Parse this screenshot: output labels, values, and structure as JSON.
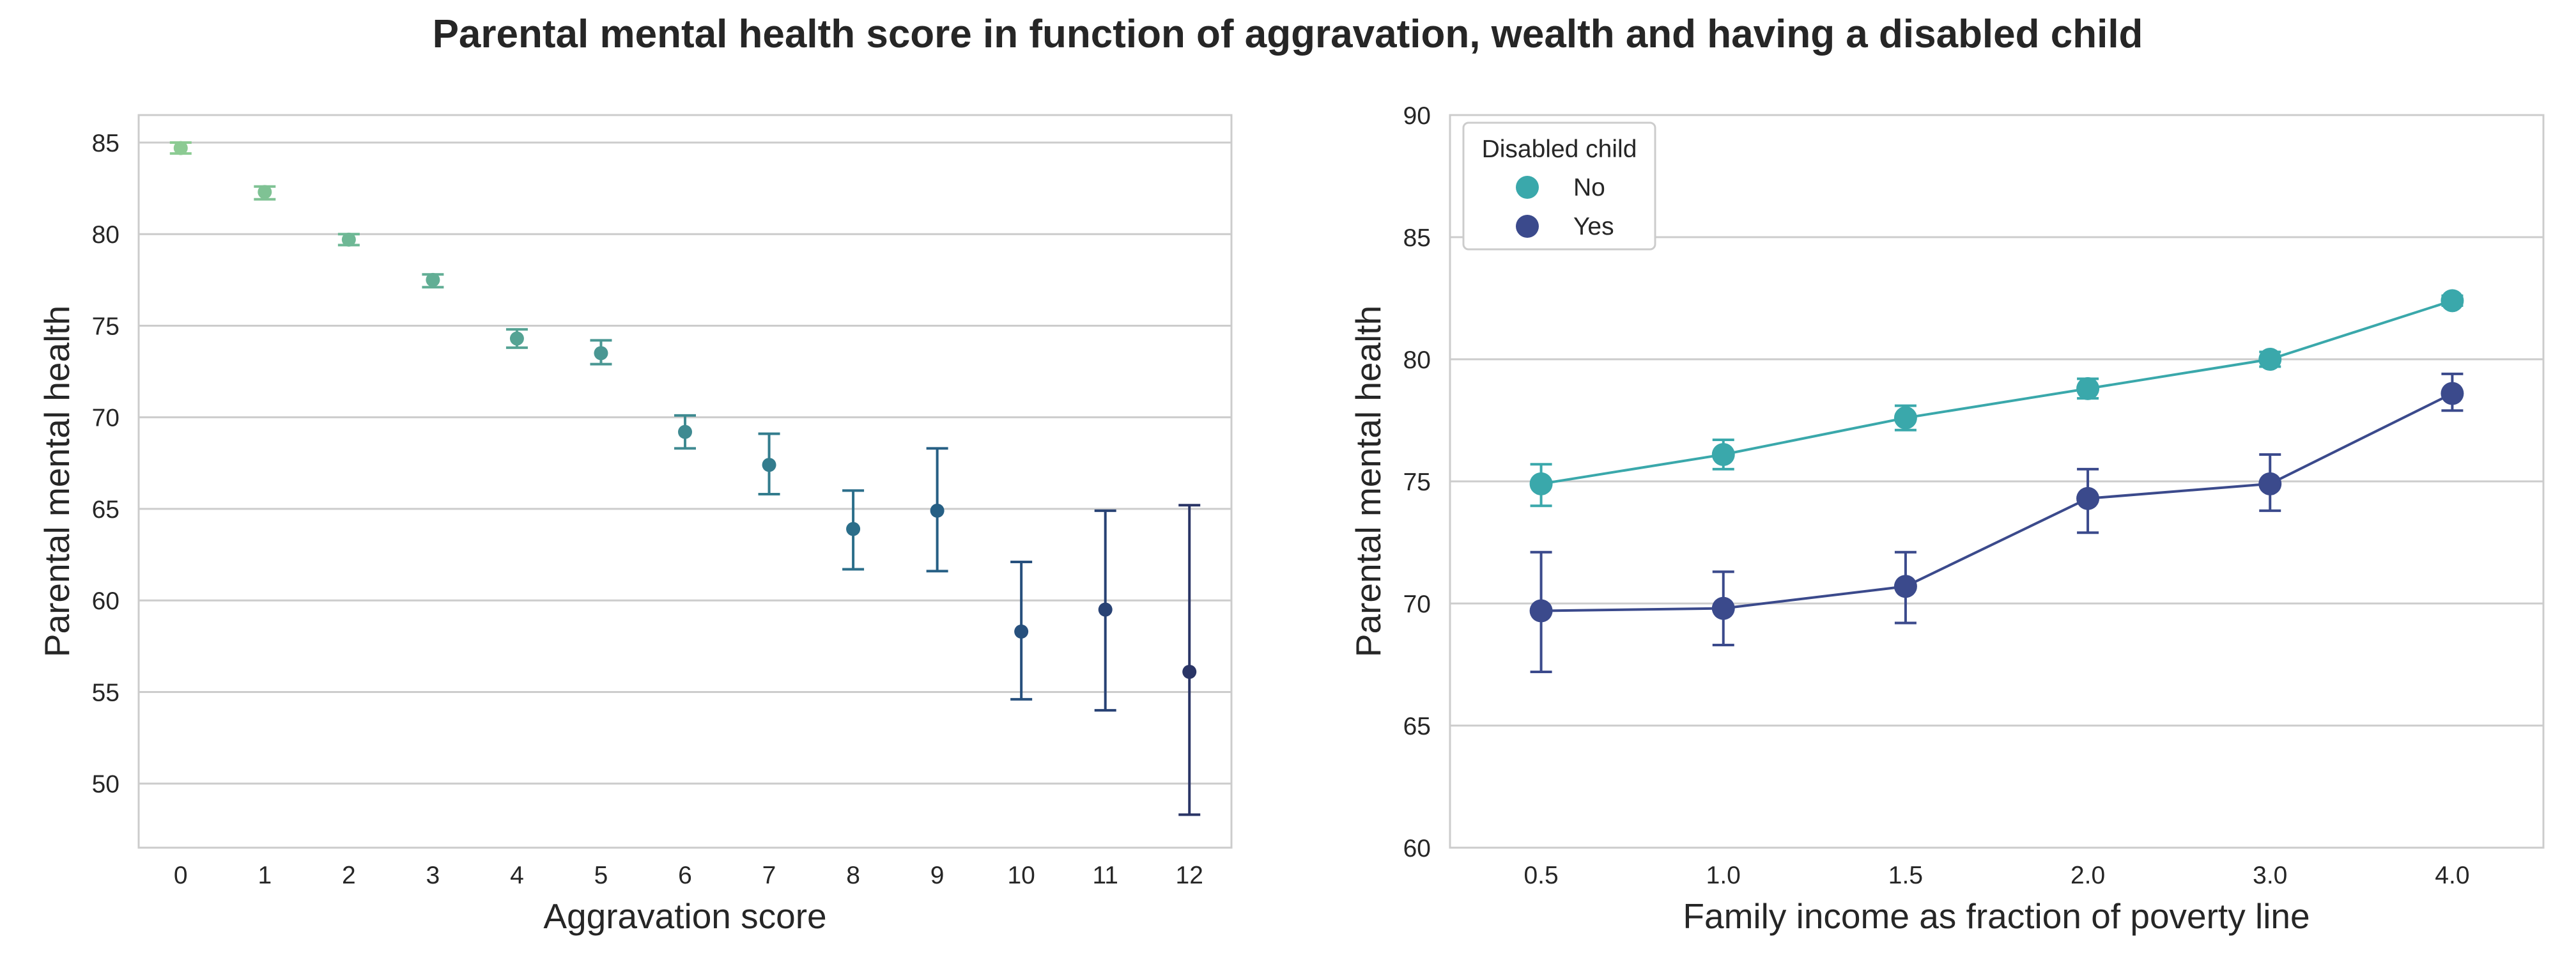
{
  "title": "Parental mental health score in function of aggravation, wealth and having a disabled child",
  "chart_data": [
    {
      "type": "scatter",
      "xlabel": "Aggravation score",
      "ylabel": "Parental mental health",
      "ylim": [
        46.5,
        86.5
      ],
      "yticks": [
        50,
        55,
        60,
        65,
        70,
        75,
        80,
        85
      ],
      "grid": "horizontal",
      "x": [
        "0",
        "1",
        "2",
        "3",
        "4",
        "5",
        "6",
        "7",
        "8",
        "9",
        "10",
        "11",
        "12"
      ],
      "y": [
        84.7,
        82.3,
        79.7,
        77.5,
        74.3,
        73.5,
        69.2,
        67.4,
        63.9,
        64.9,
        58.3,
        59.5,
        56.1
      ],
      "ci_low": [
        84.4,
        81.9,
        79.4,
        77.1,
        73.8,
        72.9,
        68.3,
        65.8,
        61.7,
        61.6,
        54.6,
        54.0,
        48.3
      ],
      "ci_high": [
        85.0,
        82.6,
        80.0,
        77.8,
        74.8,
        74.2,
        70.1,
        69.1,
        66.0,
        68.3,
        62.1,
        64.9,
        65.2
      ],
      "colors": [
        "#8ccb93",
        "#7fc294",
        "#6eb895",
        "#62ae95",
        "#55a394",
        "#4a9793",
        "#3f8a91",
        "#337c8d",
        "#2b6e8a",
        "#265f84",
        "#27507d",
        "#284274",
        "#2a3566"
      ]
    },
    {
      "type": "line",
      "xlabel": "Family income as fraction of poverty line",
      "ylabel": "Parental mental health",
      "ylim": [
        60,
        90
      ],
      "yticks": [
        60,
        65,
        70,
        75,
        80,
        85,
        90
      ],
      "grid": "horizontal",
      "categories": [
        "0.5",
        "1.0",
        "1.5",
        "2.0",
        "3.0",
        "4.0"
      ],
      "legend": {
        "title": "Disabled child",
        "position": "top-left"
      },
      "series": [
        {
          "name": "No",
          "color": "#3aa8ab",
          "values": [
            74.9,
            76.1,
            77.6,
            78.8,
            80.0,
            82.4
          ],
          "ci_low": [
            74.0,
            75.5,
            77.1,
            78.4,
            79.7,
            82.2
          ],
          "ci_high": [
            75.7,
            76.7,
            78.1,
            79.2,
            80.3,
            82.6
          ]
        },
        {
          "name": "Yes",
          "color": "#3b4a8c",
          "values": [
            69.7,
            69.8,
            70.7,
            74.3,
            74.9,
            78.6
          ],
          "ci_low": [
            67.2,
            68.3,
            69.2,
            72.9,
            73.8,
            77.9
          ],
          "ci_high": [
            72.1,
            71.3,
            72.1,
            75.5,
            76.1,
            79.4
          ]
        }
      ]
    }
  ]
}
